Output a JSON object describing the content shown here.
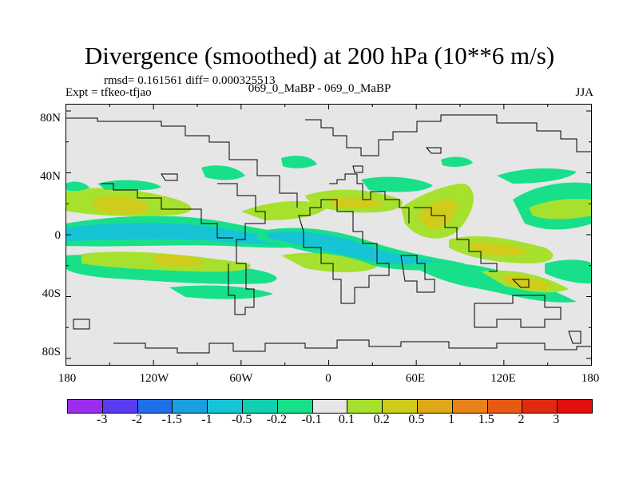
{
  "title": "Divergence (smoothed) at 200 hPa (10**6 m/s)",
  "stats": "rmsd= 0.161561 diff= 0.000325513",
  "experiment": "Expt = tfkeo-tfjao",
  "comparison": "069_0_MaBP - 069_0_MaBP",
  "season": "JJA",
  "lat_labels": [
    "80N",
    "40N",
    "0",
    "40S",
    "80S"
  ],
  "lon_labels": [
    "180",
    "120W",
    "60W",
    "0",
    "60E",
    "120E",
    "180"
  ],
  "colorbar": {
    "labels": [
      "-3",
      "-2",
      "-1.5",
      "-1",
      "-0.5",
      "-0.2",
      "-0.1",
      "0.1",
      "0.2",
      "0.5",
      "1",
      "1.5",
      "2",
      "3"
    ],
    "colors": [
      "#9b2dee",
      "#5a3cf0",
      "#1f6fe8",
      "#1aa0e0",
      "#17c4d6",
      "#11d0b0",
      "#18e08a",
      "#e6e6e6",
      "#a6e12e",
      "#cfcc1c",
      "#dfa818",
      "#e68218",
      "#e65a16",
      "#e02a10",
      "#e30e0e"
    ]
  },
  "colors": {
    "background": "#e6e6e6",
    "coastline": "#000000",
    "neg_strong": "#17c4d6",
    "neg_weak": "#18e08a",
    "pos_weak": "#a6e12e",
    "pos_mid": "#cfcc1c",
    "pos_strong": "#dfa818"
  }
}
